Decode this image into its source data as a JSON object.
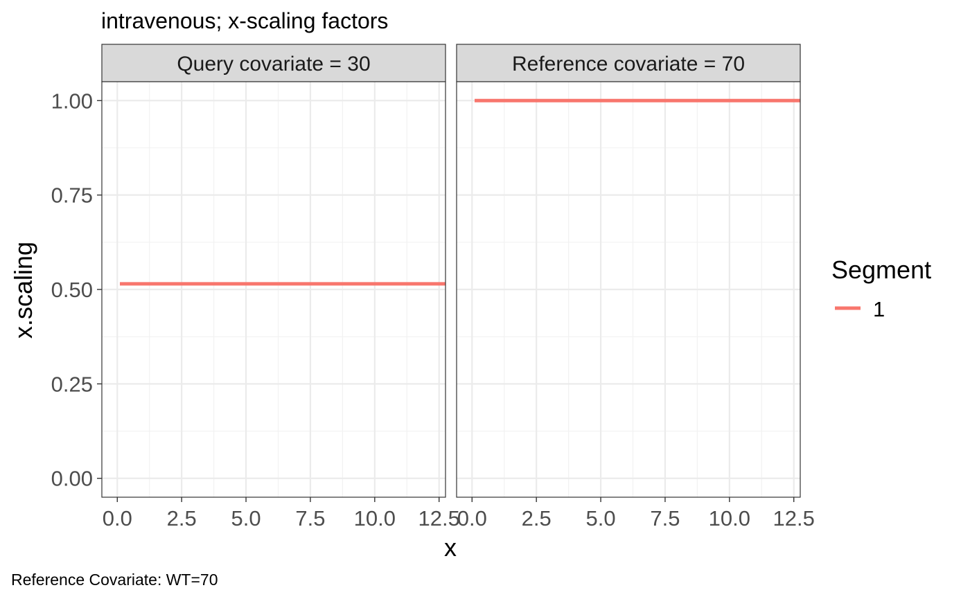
{
  "chart_data": {
    "type": "line",
    "title": "intravenous; x-scaling factors",
    "xlabel": "x",
    "ylabel": "x.scaling",
    "caption": "Reference Covariate: WT=70",
    "xlim": [
      -0.6,
      12.75
    ],
    "ylim": [
      -0.05,
      1.05
    ],
    "x_ticks": [
      0.0,
      2.5,
      5.0,
      7.5,
      10.0,
      12.5
    ],
    "x_tick_labels": [
      "0.0",
      "2.5",
      "5.0",
      "7.5",
      "10.0",
      "12.5"
    ],
    "y_ticks": [
      0.0,
      0.25,
      0.5,
      0.75,
      1.0
    ],
    "y_tick_labels": [
      "0.00",
      "0.25",
      "0.50",
      "0.75",
      "1.00"
    ],
    "grid": true,
    "legend": {
      "title": "Segment",
      "placement": "right",
      "entries": [
        {
          "label": "1",
          "color": "#F8766D"
        }
      ]
    },
    "panels": [
      {
        "strip": "Query  covariate = 30",
        "series": [
          {
            "name": "1",
            "color": "#F8766D",
            "x": [
              0.1,
              12.75
            ],
            "y": [
              0.515,
              0.515
            ]
          }
        ]
      },
      {
        "strip": "Reference  covariate = 70",
        "series": [
          {
            "name": "1",
            "color": "#F8766D",
            "x": [
              0.1,
              12.75
            ],
            "y": [
              1.0,
              1.0
            ]
          }
        ]
      }
    ]
  }
}
